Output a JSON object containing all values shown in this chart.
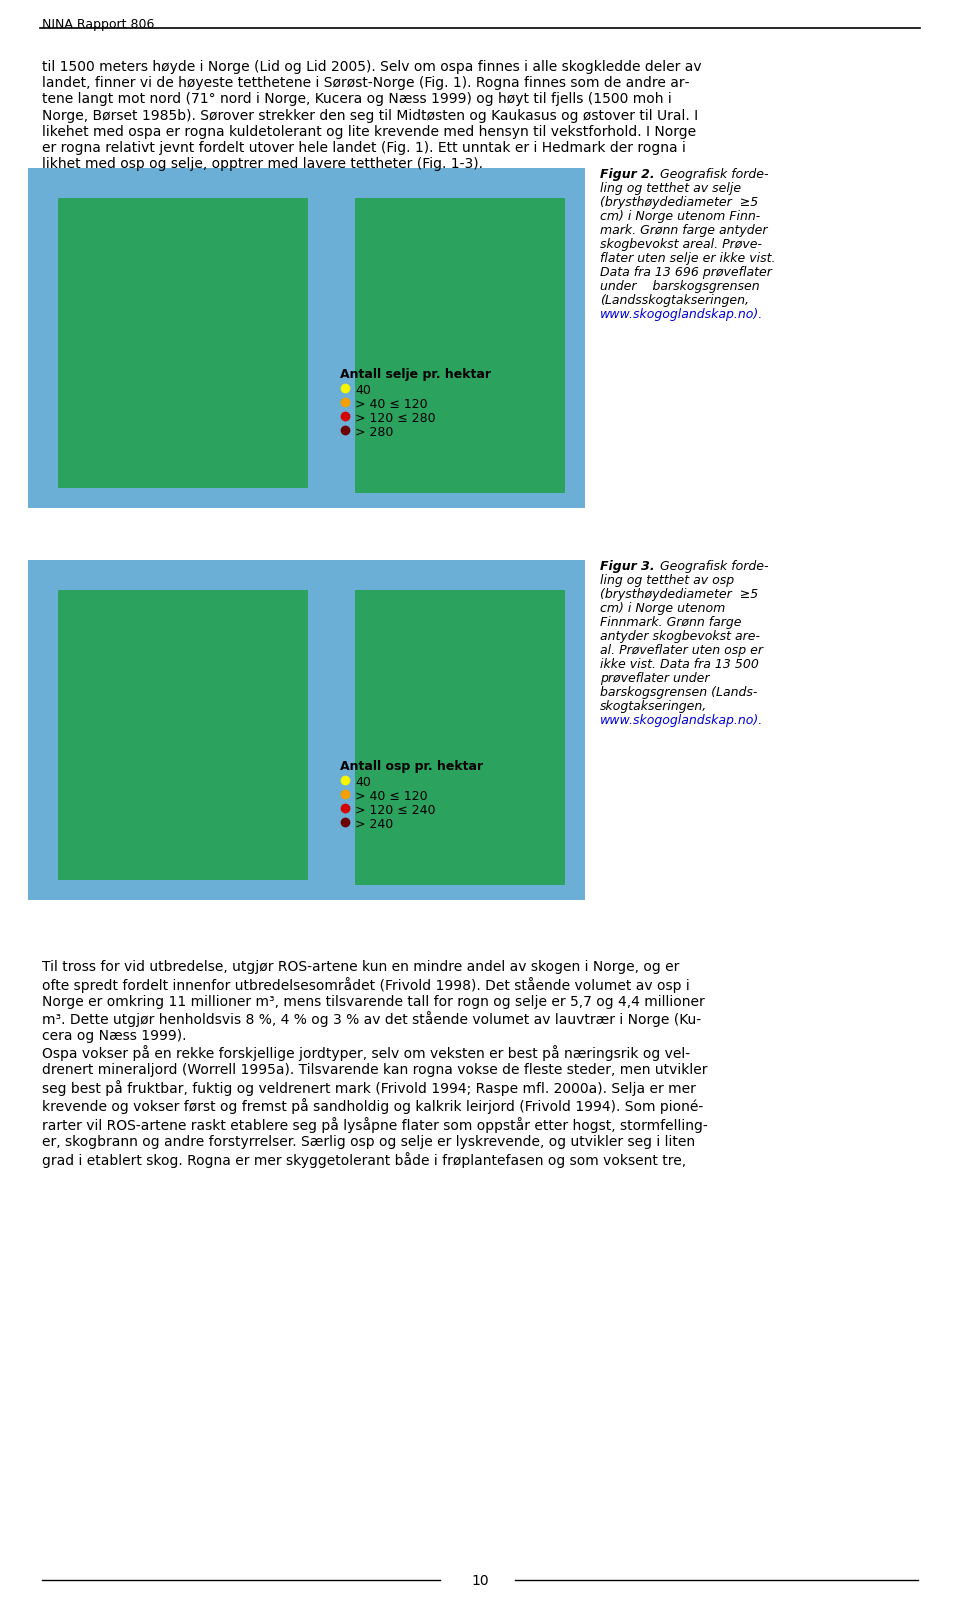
{
  "header_text": "NINA Rapport 806",
  "page_number": "10",
  "background_color": "#ffffff",
  "text_color": "#000000",
  "header_line_color": "#000000",
  "font_size_header": 9,
  "font_size_body": 10,
  "font_size_caption": 9,
  "paragraphs": [
    "til 1500 meters høyde i Norge (Lid og Lid 2005). Selv om ospa finnes i alle skogkledde deler av landet, finner vi de høyeste tetthetene i Sørøst-Norge (Fig. 1). Rogna finnes som de andre ar­tene langt mot nord (71° nord i Norge, Kucera og Næss 1999) og høyt til fjells (1500 moh i Norge, Børset 1985b). Sørover strekker den seg til Midtøsten og Kaukasus og østover til Ural. I likehet med ospa er rogna kuldetolerant og lite krevende med hensyn til vekstforhold. I Norge er rogna relativt jevnt fordelt utover hele landet (Fig. 1). Ett unntak er i Hedmark der rogna i likhet med osp og selje, opptrer med lavere tettheter (Fig. 1-3)."
  ],
  "fig2_caption_title": "Figur 2.",
  "fig2_caption_body": " Geografisk forde­ling og tetthet av selje (brysthøydediameter ≥5 cm) i Norge utenom Finn­mark. Grønn farge antyder skogbevokst areal. Prøve­flater uten selje er ikke vist. Data fra 13 696 prøveflater under    barskogsgrensen (Landsskogtakseringen, www.skogoglandskap.no).",
  "fig3_caption_title": "Figur 3.",
  "fig3_caption_body": " Geografisk forde­ling og tetthet av osp (brysthøydediameter ≥5 cm) i Norge utenom Finnmark. Grønn farge antyder skogbevokst are­al. Prøveflater uten osp er ikke vist. Data fra 13 500 prøveflater under barskogsgrensen (Lands­skogtakseringen, www.skogoglandskap.no).",
  "legend2_title": "Antall selje pr. hektar",
  "legend2_items": [
    "40",
    "> 40 ≤ 120",
    "> 120 ≤ 280",
    "> 280"
  ],
  "legend2_colors": [
    "#f5f500",
    "#f5a000",
    "#d40000",
    "#6b0000"
  ],
  "legend3_title": "Antall osp pr. hektar",
  "legend3_items": [
    "40",
    "> 40 ≤ 120",
    "> 120 ≤ 240",
    "> 240"
  ],
  "legend3_colors": [
    "#f5f500",
    "#f5a000",
    "#d40000",
    "#6b0000"
  ],
  "bottom_paragraphs": [
    "Til tross for vid utbredelse, utgjør ROS-artene kun en mindre andel av skogen i Norge, og er ofte spredt fordelt innenfor utbredelsesområdet (Frivold 1998). Det stående volumet av osp i Norge er omkring 11 millioner m³, mens tilsvarende tall for rogn og selje er 5,7 og 4,4 millioner m³. Dette utgjør henholdsvis 8 %, 4 % og 3 % av det stående volumet av lauvtrær i Norge (Ku­cera og Næss 1999).",
    "Ospa vokser på en rekke forskjellige jordtyper, selv om veksten er best på næringsrik og vel­drenert mineraljord (Worrell 1995a). Tilsvarende kan rogna vokse de fleste steder, men utvikler seg best på fruktbar, fuktig og veldrenert mark (Frivold 1994; Raspe mfl. 2000a). Selja er mer krevende og vokser først og fremst på sandholdig og kalkrik leirjord (Frivold 1994). Som pioné­rarter vil ROS-artene raskt etablere seg på lysåpne flater som oppstår etter hogst, stormfelling­er, skogbrann og andre forstyrrelser. Særlig osp og selje er lyskrevende, og utvikler seg i liten grad i etablert skog. Rogna er mer skyggetolerant både i frøplantefasen og som voksent tre,"
  ],
  "url_color": "#0000cd"
}
